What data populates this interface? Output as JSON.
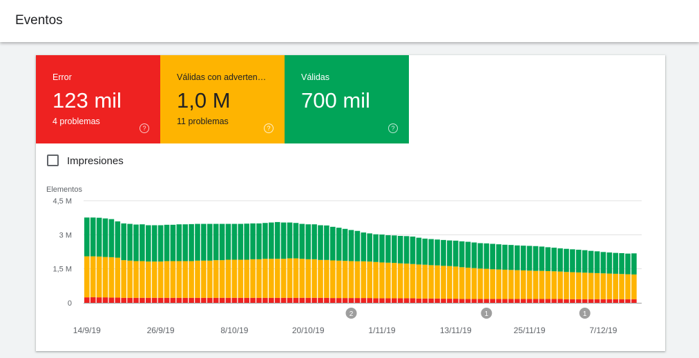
{
  "header": {
    "title": "Eventos"
  },
  "tiles": [
    {
      "label": "Error",
      "value": "123 mil",
      "sub": "4 problemas",
      "color": "#ee2221",
      "help_icon": "help-circle-icon"
    },
    {
      "label": "Válidas con adverten…",
      "value": "1,0 M",
      "sub": "11 problemas",
      "color": "#feb401",
      "help_icon": "help-circle-icon"
    },
    {
      "label": "Válidas",
      "value": "700 mil",
      "sub": "",
      "color": "#01a458",
      "help_icon": "help-circle-icon"
    }
  ],
  "impressions": {
    "label": "Impresiones",
    "checked": false
  },
  "chart_data": {
    "type": "bar",
    "stacked": true,
    "ylabel": "Elementos",
    "ytick_labels": [
      "0",
      "1,5 M",
      "3 M",
      "4,5 M"
    ],
    "yticks": [
      0,
      1.5,
      3,
      4.5
    ],
    "ylim": [
      0,
      4.5
    ],
    "xtick_labels": [
      "14/9/19",
      "26/9/19",
      "8/10/19",
      "20/10/19",
      "1/11/19",
      "13/11/19",
      "25/11/19",
      "7/12/19"
    ],
    "xtick_bar_index": [
      0,
      12,
      24,
      36,
      48,
      60,
      72,
      84
    ],
    "annotations": [
      {
        "label": "2",
        "bar_index": 43
      },
      {
        "label": "1",
        "bar_index": 65
      },
      {
        "label": "1",
        "bar_index": 81
      }
    ],
    "series": [
      {
        "name": "Error",
        "color": "#ee2221",
        "values": [
          0.24,
          0.25,
          0.24,
          0.24,
          0.23,
          0.23,
          0.22,
          0.22,
          0.22,
          0.22,
          0.22,
          0.22,
          0.22,
          0.22,
          0.22,
          0.22,
          0.22,
          0.22,
          0.22,
          0.22,
          0.22,
          0.22,
          0.22,
          0.22,
          0.22,
          0.22,
          0.22,
          0.22,
          0.22,
          0.22,
          0.22,
          0.22,
          0.22,
          0.22,
          0.22,
          0.22,
          0.22,
          0.22,
          0.22,
          0.22,
          0.21,
          0.21,
          0.21,
          0.21,
          0.21,
          0.21,
          0.21,
          0.2,
          0.2,
          0.2,
          0.2,
          0.2,
          0.2,
          0.2,
          0.19,
          0.19,
          0.19,
          0.19,
          0.18,
          0.18,
          0.18,
          0.17,
          0.17,
          0.17,
          0.17,
          0.17,
          0.17,
          0.17,
          0.17,
          0.17,
          0.17,
          0.17,
          0.17,
          0.17,
          0.17,
          0.17,
          0.17,
          0.17,
          0.16,
          0.16,
          0.16,
          0.16,
          0.16,
          0.16,
          0.16,
          0.16,
          0.16,
          0.16,
          0.16,
          0.16
        ]
      },
      {
        "name": "Válidas con advertencias",
        "color": "#feb401",
        "values": [
          1.81,
          1.8,
          1.8,
          1.78,
          1.78,
          1.76,
          1.66,
          1.64,
          1.62,
          1.62,
          1.6,
          1.6,
          1.6,
          1.62,
          1.62,
          1.62,
          1.62,
          1.62,
          1.64,
          1.64,
          1.64,
          1.66,
          1.66,
          1.68,
          1.68,
          1.68,
          1.68,
          1.7,
          1.7,
          1.72,
          1.72,
          1.72,
          1.72,
          1.74,
          1.74,
          1.72,
          1.7,
          1.7,
          1.67,
          1.67,
          1.66,
          1.65,
          1.64,
          1.63,
          1.62,
          1.62,
          1.61,
          1.6,
          1.58,
          1.57,
          1.56,
          1.54,
          1.53,
          1.51,
          1.5,
          1.49,
          1.47,
          1.46,
          1.45,
          1.44,
          1.42,
          1.4,
          1.38,
          1.36,
          1.34,
          1.33,
          1.31,
          1.3,
          1.29,
          1.28,
          1.27,
          1.26,
          1.25,
          1.24,
          1.24,
          1.23,
          1.22,
          1.21,
          1.2,
          1.19,
          1.18,
          1.17,
          1.16,
          1.15,
          1.14,
          1.13,
          1.12,
          1.11,
          1.1,
          1.09
        ]
      },
      {
        "name": "Válidas",
        "color": "#01a458",
        "values": [
          1.71,
          1.71,
          1.71,
          1.7,
          1.68,
          1.6,
          1.62,
          1.62,
          1.61,
          1.62,
          1.6,
          1.6,
          1.6,
          1.6,
          1.6,
          1.62,
          1.62,
          1.63,
          1.62,
          1.62,
          1.62,
          1.6,
          1.6,
          1.58,
          1.58,
          1.58,
          1.59,
          1.58,
          1.58,
          1.58,
          1.6,
          1.62,
          1.6,
          1.58,
          1.56,
          1.54,
          1.54,
          1.54,
          1.53,
          1.52,
          1.48,
          1.45,
          1.41,
          1.37,
          1.34,
          1.27,
          1.24,
          1.22,
          1.23,
          1.21,
          1.21,
          1.21,
          1.21,
          1.21,
          1.18,
          1.15,
          1.15,
          1.14,
          1.14,
          1.13,
          1.14,
          1.14,
          1.14,
          1.13,
          1.12,
          1.12,
          1.12,
          1.11,
          1.1,
          1.1,
          1.09,
          1.09,
          1.09,
          1.09,
          1.07,
          1.05,
          1.04,
          1.02,
          1.02,
          1.01,
          1.0,
          0.99,
          0.97,
          0.96,
          0.94,
          0.93,
          0.92,
          0.92,
          0.91,
          0.93
        ]
      }
    ]
  }
}
